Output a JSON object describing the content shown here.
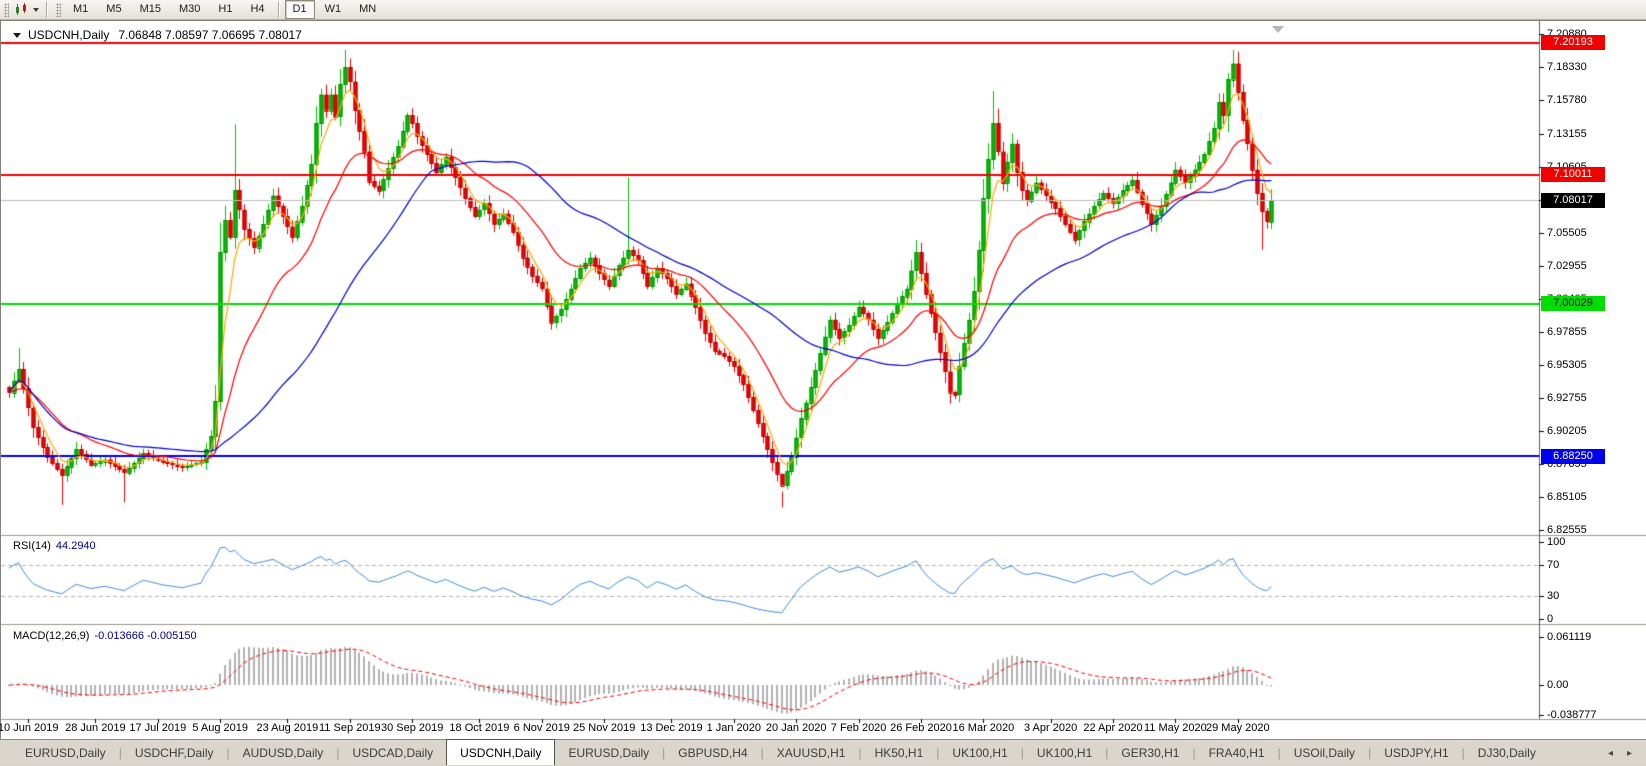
{
  "toolbar": {
    "chart_icon": "charts-toolbar-icon",
    "timeframes": [
      "M1",
      "M5",
      "M15",
      "M30",
      "H1",
      "H4",
      "D1",
      "W1",
      "MN"
    ],
    "active_timeframe": "D1"
  },
  "chart": {
    "symbol_label": "USDCNH,Daily",
    "ohlc_values": "7.06848 7.08597 7.06695 7.08017"
  },
  "chart_data": {
    "type": "candlestick",
    "symbol": "USDCNH",
    "timeframe": "Daily",
    "ohlc_display": {
      "open": "7.06848",
      "high": "7.08597",
      "low": "7.06695",
      "close": "7.08017"
    },
    "y_axis_ticks": [
      "7.20880",
      "7.18330",
      "7.15780",
      "7.13155",
      "7.10605",
      "7.08055",
      "7.05505",
      "7.02955",
      "7.00405",
      "6.97855",
      "6.95305",
      "6.92755",
      "6.90205",
      "6.87655",
      "6.85105",
      "6.82555"
    ],
    "price_lines": [
      {
        "price": 7.20193,
        "label": "7.20193",
        "line_color": "#f20000",
        "label_bg": "#f20000",
        "label_fg": "#ffffff",
        "width": 2
      },
      {
        "price": 7.10011,
        "label": "7.10011",
        "line_color": "#f20000",
        "label_bg": "#f20000",
        "label_fg": "#ffffff",
        "width": 2
      },
      {
        "price": 7.08017,
        "label": "7.08017",
        "line_color": "#bdbdbd",
        "label_bg": "#000000",
        "label_fg": "#ffffff",
        "width": 1
      },
      {
        "price": 7.00029,
        "label": "7.00029",
        "line_color": "#00dd00",
        "label_bg": "#00dd00",
        "label_fg": "#000000",
        "width": 2
      },
      {
        "price": 6.8825,
        "label": "6.88250",
        "line_color": "#0000f0",
        "label_bg": "#0000f0",
        "label_fg": "#ffffff",
        "width": 2
      }
    ],
    "x_axis_labels": [
      {
        "text": "10 Jun 2019",
        "candle": 4
      },
      {
        "text": "28 Jun 2019",
        "candle": 18
      },
      {
        "text": "17 Jul 2019",
        "candle": 31
      },
      {
        "text": "5 Aug 2019",
        "candle": 44
      },
      {
        "text": "23 Aug 2019",
        "candle": 58
      },
      {
        "text": "11 Sep 2019",
        "candle": 71
      },
      {
        "text": "30 Sep 2019",
        "candle": 84
      },
      {
        "text": "18 Oct 2019",
        "candle": 98
      },
      {
        "text": "6 Nov 2019",
        "candle": 111
      },
      {
        "text": "25 Nov 2019",
        "candle": 124
      },
      {
        "text": "13 Dec 2019",
        "candle": 138
      },
      {
        "text": "1 Jan 2020",
        "candle": 151
      },
      {
        "text": "20 Jan 2020",
        "candle": 164
      },
      {
        "text": "7 Feb 2020",
        "candle": 177
      },
      {
        "text": "26 Feb 2020",
        "candle": 190
      },
      {
        "text": "16 Mar 2020",
        "candle": 203
      },
      {
        "text": "3 Apr 2020",
        "candle": 217
      },
      {
        "text": "22 Apr 2020",
        "candle": 230
      },
      {
        "text": "11 May 2020",
        "candle": 243
      },
      {
        "text": "29 May 2020",
        "candle": 256
      }
    ],
    "candle_count": 264,
    "close_anchors": [
      [
        0,
        6.932
      ],
      [
        2,
        6.95
      ],
      [
        5,
        6.905
      ],
      [
        8,
        6.882
      ],
      [
        11,
        6.868
      ],
      [
        14,
        6.888
      ],
      [
        17,
        6.876
      ],
      [
        20,
        6.88
      ],
      [
        24,
        6.87
      ],
      [
        28,
        6.885
      ],
      [
        32,
        6.878
      ],
      [
        36,
        6.874
      ],
      [
        40,
        6.878
      ],
      [
        42,
        6.898
      ],
      [
        43,
        6.925
      ],
      [
        44,
        7.04
      ],
      [
        45,
        7.065
      ],
      [
        46,
        7.052
      ],
      [
        47,
        7.088
      ],
      [
        49,
        7.058
      ],
      [
        51,
        7.044
      ],
      [
        53,
        7.062
      ],
      [
        55,
        7.084
      ],
      [
        57,
        7.068
      ],
      [
        59,
        7.052
      ],
      [
        61,
        7.076
      ],
      [
        63,
        7.108
      ],
      [
        64,
        7.14
      ],
      [
        65,
        7.162
      ],
      [
        66,
        7.15
      ],
      [
        67,
        7.162
      ],
      [
        68,
        7.145
      ],
      [
        69,
        7.17
      ],
      [
        70,
        7.183
      ],
      [
        71,
        7.172
      ],
      [
        72,
        7.15
      ],
      [
        74,
        7.118
      ],
      [
        75,
        7.095
      ],
      [
        77,
        7.088
      ],
      [
        79,
        7.105
      ],
      [
        81,
        7.122
      ],
      [
        83,
        7.146
      ],
      [
        84,
        7.14
      ],
      [
        85,
        7.13
      ],
      [
        87,
        7.116
      ],
      [
        89,
        7.102
      ],
      [
        91,
        7.114
      ],
      [
        93,
        7.098
      ],
      [
        95,
        7.082
      ],
      [
        97,
        7.068
      ],
      [
        99,
        7.078
      ],
      [
        101,
        7.062
      ],
      [
        103,
        7.07
      ],
      [
        105,
        7.056
      ],
      [
        107,
        7.036
      ],
      [
        109,
        7.022
      ],
      [
        111,
        7.012
      ],
      [
        113,
        6.986
      ],
      [
        115,
        6.996
      ],
      [
        117,
        7.012
      ],
      [
        119,
        7.028
      ],
      [
        121,
        7.036
      ],
      [
        123,
        7.024
      ],
      [
        125,
        7.014
      ],
      [
        127,
        7.03
      ],
      [
        129,
        7.042
      ],
      [
        131,
        7.034
      ],
      [
        133,
        7.014
      ],
      [
        135,
        7.028
      ],
      [
        137,
        7.02
      ],
      [
        139,
        7.008
      ],
      [
        141,
        7.016
      ],
      [
        143,
        6.998
      ],
      [
        145,
        6.978
      ],
      [
        147,
        6.964
      ],
      [
        149,
        6.96
      ],
      [
        151,
        6.952
      ],
      [
        153,
        6.938
      ],
      [
        155,
        6.918
      ],
      [
        157,
        6.898
      ],
      [
        159,
        6.878
      ],
      [
        161,
        6.86
      ],
      [
        163,
        6.882
      ],
      [
        165,
        6.912
      ],
      [
        167,
        6.936
      ],
      [
        169,
        6.962
      ],
      [
        171,
        6.988
      ],
      [
        173,
        6.974
      ],
      [
        175,
        6.984
      ],
      [
        177,
        6.998
      ],
      [
        179,
        6.988
      ],
      [
        181,
        6.974
      ],
      [
        183,
        6.986
      ],
      [
        185,
        7.0
      ],
      [
        187,
        7.012
      ],
      [
        189,
        7.04
      ],
      [
        191,
        7.008
      ],
      [
        193,
        6.978
      ],
      [
        195,
        6.948
      ],
      [
        196,
        6.932
      ],
      [
        197,
        6.93
      ],
      [
        198,
        6.952
      ],
      [
        200,
        6.988
      ],
      [
        201,
        7.01
      ],
      [
        202,
        7.042
      ],
      [
        203,
        7.082
      ],
      [
        204,
        7.112
      ],
      [
        205,
        7.14
      ],
      [
        206,
        7.118
      ],
      [
        207,
        7.094
      ],
      [
        208,
        7.11
      ],
      [
        209,
        7.124
      ],
      [
        210,
        7.102
      ],
      [
        211,
        7.088
      ],
      [
        212,
        7.08
      ],
      [
        214,
        7.094
      ],
      [
        216,
        7.084
      ],
      [
        218,
        7.074
      ],
      [
        220,
        7.062
      ],
      [
        222,
        7.05
      ],
      [
        224,
        7.064
      ],
      [
        226,
        7.076
      ],
      [
        228,
        7.086
      ],
      [
        230,
        7.078
      ],
      [
        232,
        7.088
      ],
      [
        234,
        7.096
      ],
      [
        236,
        7.078
      ],
      [
        238,
        7.062
      ],
      [
        240,
        7.076
      ],
      [
        242,
        7.094
      ],
      [
        243,
        7.104
      ],
      [
        245,
        7.094
      ],
      [
        247,
        7.104
      ],
      [
        249,
        7.116
      ],
      [
        251,
        7.136
      ],
      [
        252,
        7.156
      ],
      [
        253,
        7.146
      ],
      [
        254,
        7.174
      ],
      [
        255,
        7.186
      ],
      [
        256,
        7.164
      ],
      [
        257,
        7.142
      ],
      [
        258,
        7.124
      ],
      [
        259,
        7.104
      ],
      [
        260,
        7.086
      ],
      [
        261,
        7.072
      ],
      [
        262,
        7.064
      ],
      [
        263,
        7.08
      ]
    ],
    "wick_overrides": {
      "2": [
        6.966,
        null
      ],
      "11": [
        null,
        6.845
      ],
      "24": [
        null,
        6.847
      ],
      "44": [
        7.063,
        6.918
      ],
      "47": [
        7.139,
        null
      ],
      "70": [
        7.1965,
        null
      ],
      "129": [
        7.098,
        null
      ],
      "161": [
        6.843,
        null
      ],
      "189": [
        7.0495,
        null
      ],
      "205": [
        7.1648,
        null
      ],
      "255": [
        7.1964,
        null
      ],
      "261": [
        null,
        7.042
      ]
    },
    "moving_averages": [
      {
        "name": "ma-fast",
        "method": "ema",
        "period": 5,
        "color": "#ffaa00"
      },
      {
        "name": "ma-mid",
        "method": "ema",
        "period": 20,
        "color": "#ff0000"
      },
      {
        "name": "ma-slow",
        "method": "sma",
        "period": 45,
        "color": "#0000cd"
      }
    ],
    "rsi": {
      "name": "RSI(14)",
      "value": "44.2940",
      "period": 14,
      "color": "#3f8ede",
      "levels": [
        70,
        30
      ],
      "axis_labels": [
        {
          "text": "100",
          "value": 100
        },
        {
          "text": "70",
          "value": 70
        },
        {
          "text": "30",
          "value": 30
        },
        {
          "text": "0",
          "value": 0
        }
      ]
    },
    "macd": {
      "name": "MACD(12,26,9)",
      "values_text": "-0.013666 -0.005150",
      "fast": 12,
      "slow": 26,
      "signal": 9,
      "hist_color": "#b3b3b3",
      "signal_color": "#ff0000",
      "axis_labels": [
        {
          "text": "0.061119",
          "value": 0.061119
        },
        {
          "text": "0.00",
          "value": 0
        },
        {
          "text": "-0.038777",
          "value": -0.038777
        }
      ]
    },
    "colors": {
      "up": "#00c400",
      "up_border": "#008f00",
      "down": "#f40000",
      "down_border": "#bf0000",
      "bg": "#ffffff"
    }
  },
  "tabs": {
    "items": [
      "EURUSD,Daily",
      "USDCHF,Daily",
      "AUDUSD,Daily",
      "USDCAD,Daily",
      "USDCNH,Daily",
      "EURUSD,Daily",
      "GBPUSD,H4",
      "XAUUSD,H1",
      "HK50,H1",
      "UK100,H1",
      "UK100,H1",
      "GER30,H1",
      "FRA40,H1",
      "USOil,Daily",
      "USDJPY,H1",
      "DJ30,Daily"
    ],
    "active_index": 4,
    "scroll_left_icon": "◂",
    "scroll_right_icon": "▸"
  }
}
